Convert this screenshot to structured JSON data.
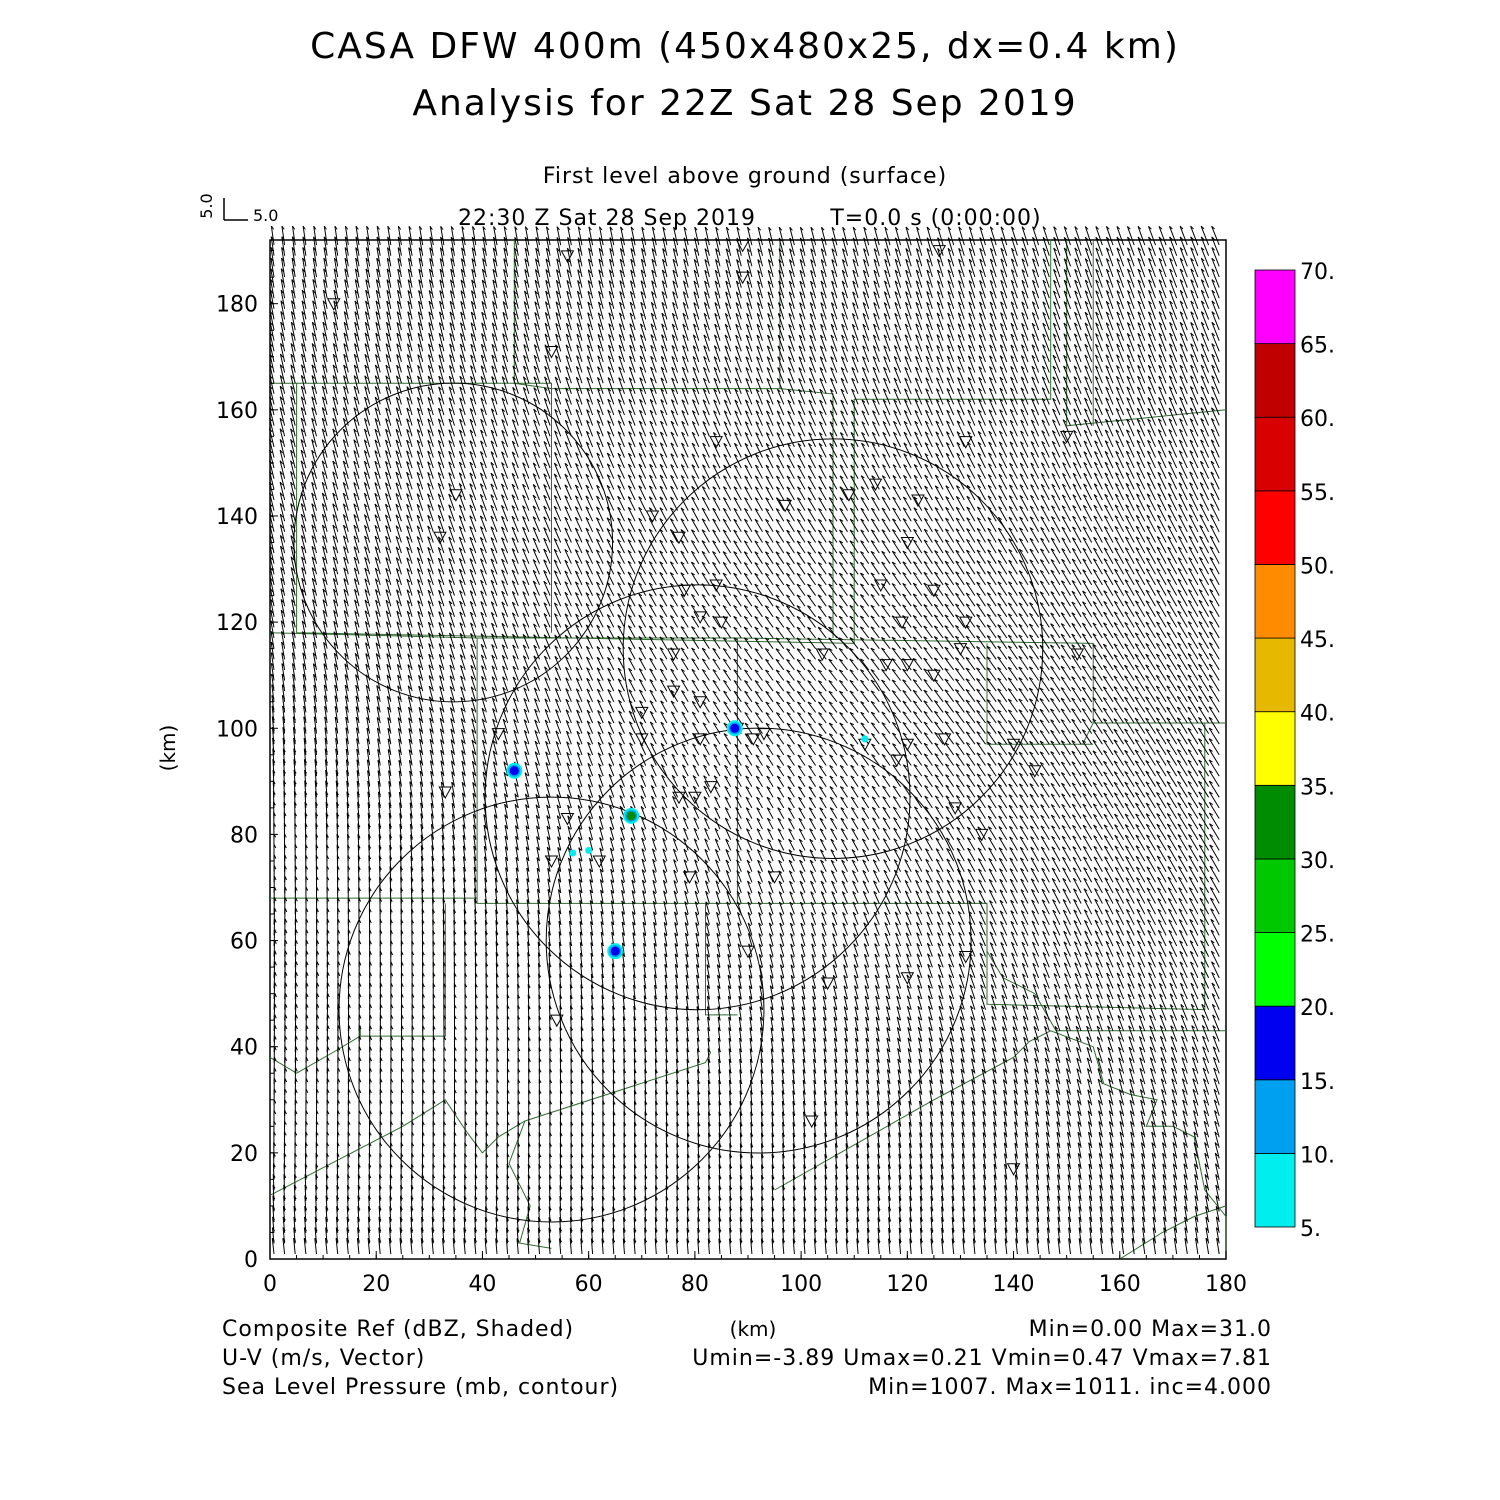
{
  "header": {
    "title_line1": "CASA DFW 400m (450x480x25, dx=0.4 km)",
    "title_line2": "Analysis for 22Z Sat 28 Sep 2019",
    "subtitle": "First level above ground (surface)",
    "valid_time": "22:30 Z Sat 28 Sep 2019",
    "forecast_time": "T=0.0 s (0:00:00)",
    "vector_ref_u": "5.0",
    "vector_ref_v": "5.0"
  },
  "footer": {
    "left": [
      "Composite Ref (dBZ, Shaded)",
      "U-V (m/s, Vector)",
      "Sea Level Pressure (mb, contour)"
    ],
    "center": "(km)",
    "right": [
      "Min=0.00 Max=31.0",
      "Umin=-3.89 Umax=0.21 Vmin=0.47 Vmax=7.81",
      "Min=1007. Max=1011. inc=4.000"
    ]
  },
  "chart_data": {
    "type": "heatmap",
    "xlabel": "(km)",
    "ylabel": "(km)",
    "xlim": [
      0,
      180
    ],
    "ylim": [
      0,
      192
    ],
    "x_ticks": [
      0,
      20,
      40,
      60,
      80,
      100,
      120,
      140,
      160,
      180
    ],
    "y_ticks": [
      0,
      20,
      40,
      60,
      80,
      100,
      120,
      140,
      160,
      180
    ],
    "colorbar": {
      "labels": [
        "5.",
        "10.",
        "15.",
        "20.",
        "25.",
        "30.",
        "35.",
        "40.",
        "45.",
        "50.",
        "55.",
        "60.",
        "65.",
        "70."
      ],
      "colors": [
        "#00eeee",
        "#00a0f0",
        "#0000f0",
        "#00ff00",
        "#00c800",
        "#008c00",
        "#ffff00",
        "#e6b800",
        "#ff8c00",
        "#ff0000",
        "#d80000",
        "#c00000",
        "#ff00ff"
      ]
    },
    "reflectivity_cells": [
      {
        "x": 46,
        "y": 92,
        "dbz": 15
      },
      {
        "x": 68,
        "y": 83.5,
        "dbz": 31
      },
      {
        "x": 87.5,
        "y": 100,
        "dbz": 15
      },
      {
        "x": 65,
        "y": 58,
        "dbz": 15
      },
      {
        "x": 57,
        "y": 76.5,
        "dbz": 8
      },
      {
        "x": 60,
        "y": 77,
        "dbz": 8
      },
      {
        "x": 112,
        "y": 98,
        "dbz": 8
      }
    ],
    "wind": {
      "u_min": -3.89,
      "u_max": 0.21,
      "v_min": 0.47,
      "v_max": 7.81
    },
    "pressure": {
      "min": 1007,
      "max": 1011,
      "inc": 4.0
    },
    "radar_circles_km": [
      {
        "cx": 34.5,
        "cy": 135,
        "r": 30
      },
      {
        "cx": 106,
        "cy": 115,
        "r": 39.5
      },
      {
        "cx": 80.5,
        "cy": 87,
        "r": 40
      },
      {
        "cx": 53,
        "cy": 47,
        "r": 40
      },
      {
        "cx": 92,
        "cy": 60,
        "r": 40
      }
    ],
    "station_markers_km": [
      [
        12,
        180
      ],
      [
        56,
        189
      ],
      [
        89,
        191
      ],
      [
        89,
        185
      ],
      [
        126,
        190
      ],
      [
        53,
        171
      ],
      [
        84,
        154
      ],
      [
        131,
        154
      ],
      [
        150,
        155
      ],
      [
        35,
        144
      ],
      [
        32,
        136
      ],
      [
        72,
        140
      ],
      [
        77,
        136
      ],
      [
        97,
        142
      ],
      [
        109,
        144
      ],
      [
        114,
        146
      ],
      [
        122,
        143
      ],
      [
        120,
        135
      ],
      [
        84,
        127
      ],
      [
        78,
        126
      ],
      [
        115,
        127
      ],
      [
        125,
        126
      ],
      [
        81,
        121
      ],
      [
        85,
        120
      ],
      [
        119,
        120
      ],
      [
        131,
        120
      ],
      [
        130,
        115
      ],
      [
        76,
        114
      ],
      [
        104,
        114
      ],
      [
        116,
        112
      ],
      [
        120,
        112
      ],
      [
        125,
        110
      ],
      [
        152,
        114
      ],
      [
        76,
        107
      ],
      [
        81,
        105
      ],
      [
        70,
        103
      ],
      [
        70,
        98
      ],
      [
        43,
        99
      ],
      [
        81,
        98
      ],
      [
        88,
        100
      ],
      [
        91,
        98
      ],
      [
        93,
        99
      ],
      [
        112,
        97
      ],
      [
        120,
        97
      ],
      [
        127,
        98
      ],
      [
        140,
        97
      ],
      [
        118,
        94
      ],
      [
        144,
        92
      ],
      [
        33,
        88
      ],
      [
        77,
        87
      ],
      [
        80,
        87
      ],
      [
        83,
        89
      ],
      [
        129,
        85
      ],
      [
        134,
        80
      ],
      [
        56,
        83
      ],
      [
        53,
        75
      ],
      [
        62,
        75
      ],
      [
        79,
        72
      ],
      [
        95,
        72
      ],
      [
        90,
        58
      ],
      [
        131,
        57
      ],
      [
        120,
        53
      ],
      [
        105,
        52
      ],
      [
        54,
        45
      ],
      [
        102,
        26
      ],
      [
        140,
        17
      ]
    ]
  }
}
